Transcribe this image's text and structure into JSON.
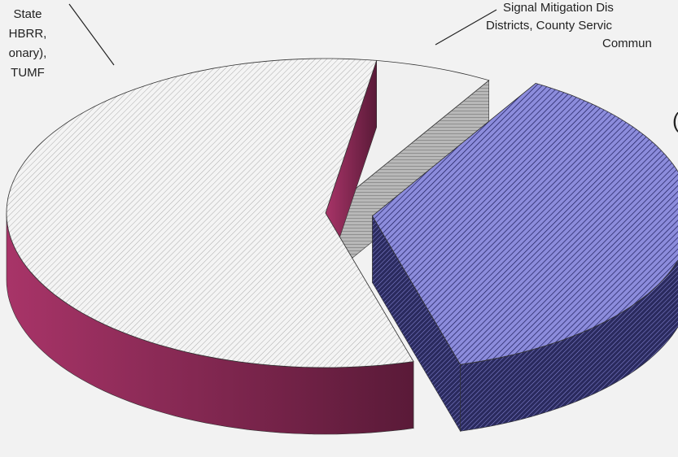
{
  "chart_data": {
    "type": "pie",
    "categories": [
      [
        "State",
        "HBRR,",
        "onary),",
        "TUMF"
      ],
      [
        "Signal Mitigation Dis",
        "Districts, County Servic",
        "Commun"
      ],
      [
        "("
      ]
    ],
    "values": [
      57,
      6,
      37
    ],
    "colors": [
      "#c8407e",
      "#f0f0f0",
      "#8c8cdc"
    ],
    "exploded": [
      false,
      false,
      true
    ],
    "three_d": true
  }
}
